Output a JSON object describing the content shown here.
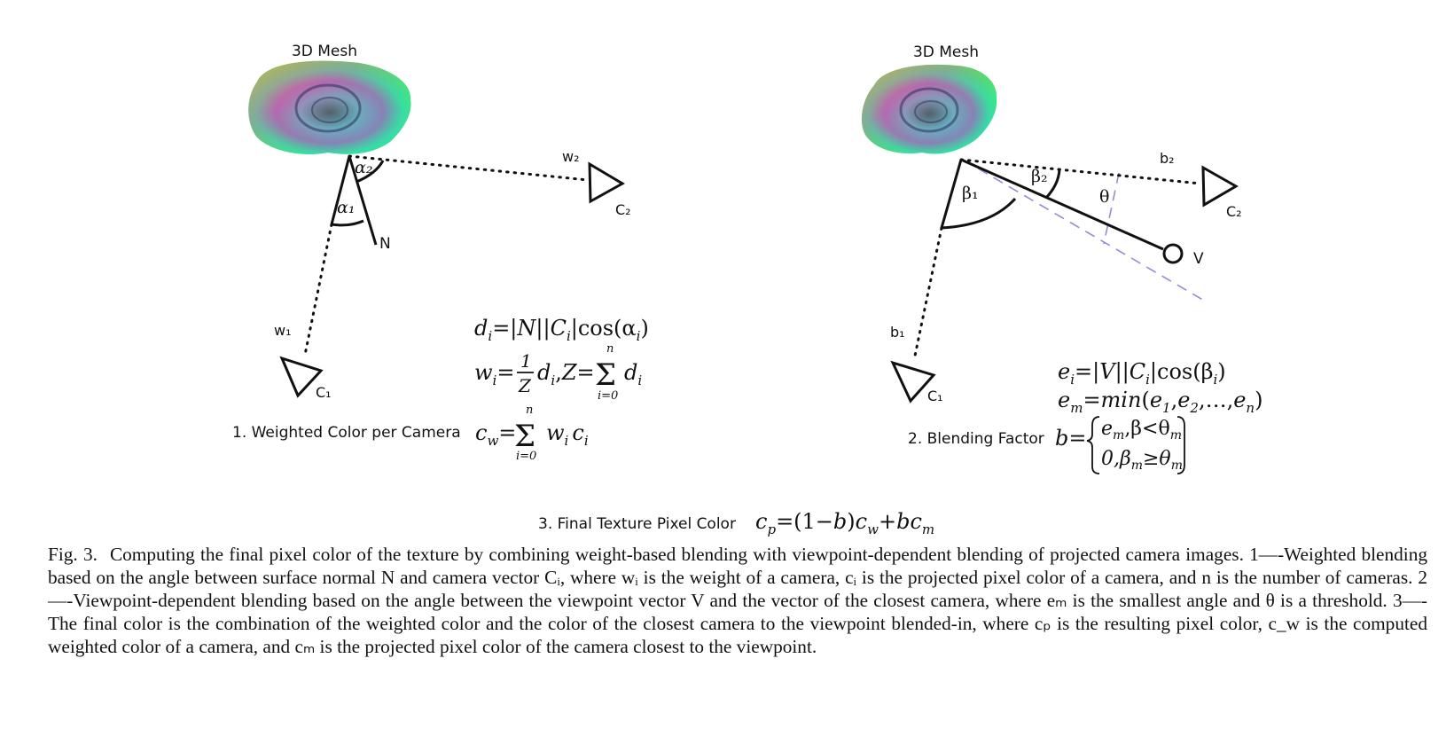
{
  "left_panel": {
    "mesh_label": "3D Mesh",
    "labels": {
      "alpha1": "α₁",
      "alpha2": "α₂",
      "normal": "N",
      "w1": "w₁",
      "w2": "w₂",
      "c1": "C₁",
      "c2": "C₂"
    },
    "equations": {
      "d_i": "dᵢ=|N||Cᵢ|cos(αᵢ)",
      "w_i": "wᵢ = (1/Z) dᵢ , Z = Σᵢ₌₀ⁿ dᵢ",
      "c_w": "c_w = Σᵢ₌₀ⁿ wᵢ cᵢ"
    },
    "section_label": "1. Weighted Color per Camera"
  },
  "right_panel": {
    "mesh_label": "3D Mesh",
    "labels": {
      "beta1": "β₁",
      "beta2": "β₂",
      "theta": "θ",
      "viewpoint": "V",
      "b1": "b₁",
      "b2": "b₂",
      "c1": "C₁",
      "c2": "C₂"
    },
    "equations": {
      "e_i": "eᵢ=|V||Cᵢ|cos(βᵢ)",
      "e_m": "eₘ=min(e₁,e₂,...,eₙ)",
      "b": "b = { eₘ, β<θₘ ; 0, βₘ≥θₘ }"
    },
    "section_label": "2. Blending Factor"
  },
  "final": {
    "section_label": "3. Final Texture Pixel Color",
    "equation": "c_p=(1−b)c_w+bc_m"
  },
  "caption": {
    "figure_label": "Fig. 3.",
    "text": "Computing the final pixel color of the texture by combining weight-based blending with viewpoint-dependent blending of projected camera images. 1—-Weighted blending based on the angle between surface normal N and camera vector Cᵢ, where wᵢ is the weight of a camera, cᵢ is the projected pixel color of a camera, and n is the number of cameras. 2—-Viewpoint-dependent blending based on the angle between the viewpoint vector V and the vector of the closest camera, where eₘ is the smallest angle and θ is a threshold. 3—-The final color is the combination of the weighted color and the color of the closest camera to the viewpoint blended-in, where cₚ is the resulting pixel color, c_w is the computed weighted color of a camera, and cₘ is the projected pixel color of the camera closest to the viewpoint."
  },
  "colors": {
    "ink": "#111111",
    "dash_line": "#8c8fd6",
    "mesh_colors": [
      "#3cf06a",
      "#2fd3c8",
      "#7aa8e8",
      "#e06a8a",
      "#f2a24a",
      "#9a66c8"
    ]
  }
}
